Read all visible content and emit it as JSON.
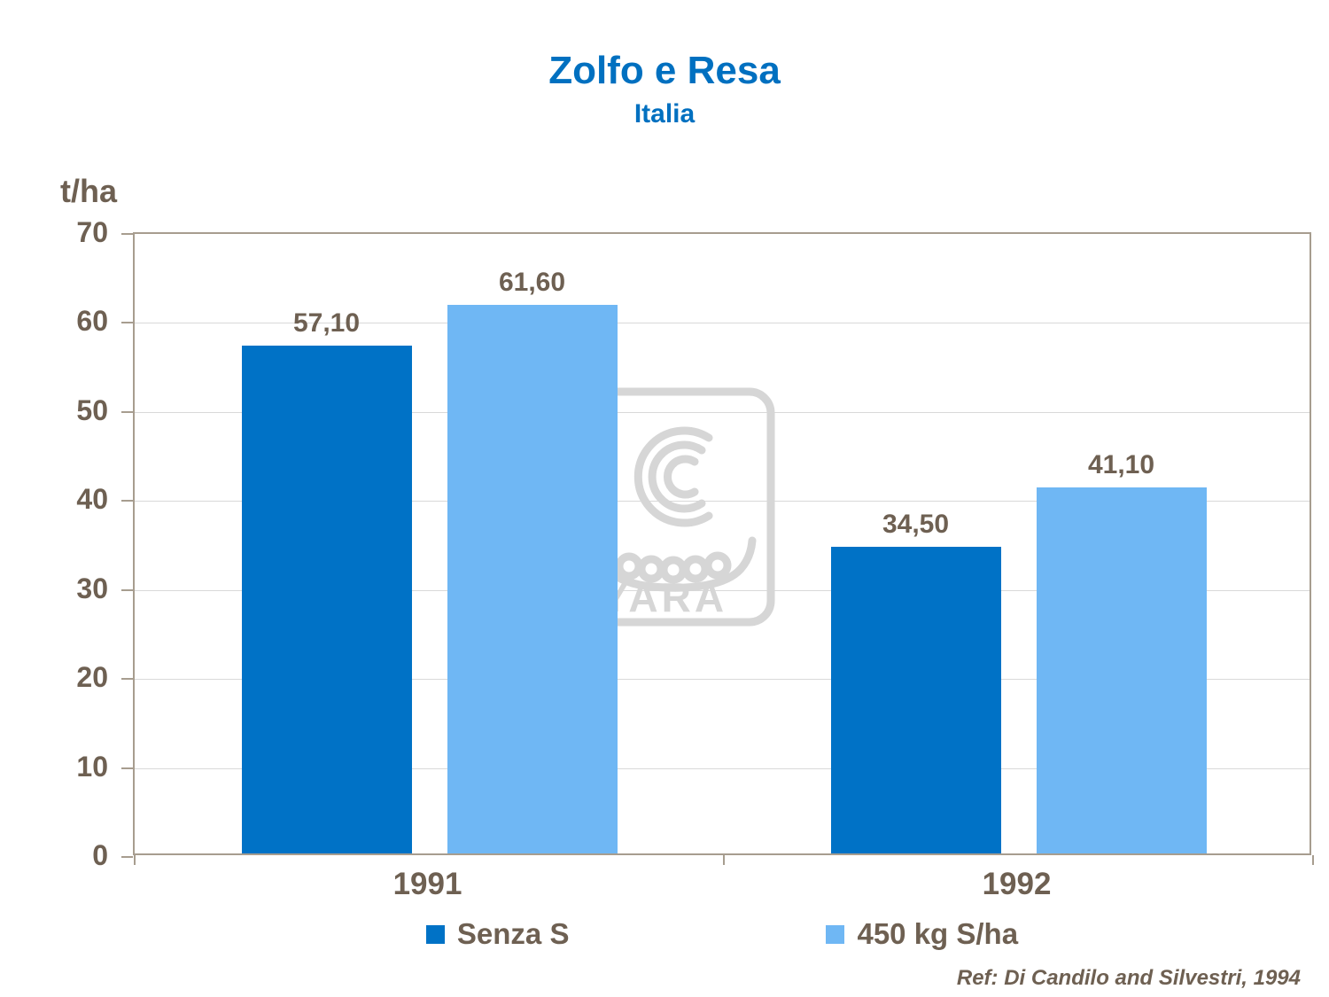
{
  "title": "Zolfo e Resa",
  "subtitle": "Italia",
  "y_axis_label": "t/ha",
  "watermark_text": "YARA",
  "ref_text": "Ref: Di Candilo  and  Silvestri, 1994",
  "colors": {
    "title_blue": "#0070C0",
    "text_brown": "#6E6052",
    "series_dark_blue": "#0072C6",
    "series_light_blue": "#6FB7F4",
    "plot_border": "#A79D8F",
    "gridline": "#D9D9D9",
    "watermark": "#D6D6D6"
  },
  "chart_data": {
    "type": "bar",
    "categories": [
      "1991",
      "1992"
    ],
    "series": [
      {
        "name": "Senza S",
        "color": "#0072C6",
        "values": [
          57.1,
          34.5
        ],
        "labels": [
          "57,10",
          "34,50"
        ]
      },
      {
        "name": "450 kg S/ha",
        "color": "#6FB7F4",
        "values": [
          61.6,
          41.1
        ],
        "labels": [
          "61,60",
          "41,10"
        ]
      }
    ],
    "title": "Zolfo e Resa",
    "subtitle": "Italia",
    "xlabel": "",
    "ylabel": "t/ha",
    "ylim": [
      0,
      70
    ],
    "ytick_step": 10,
    "grid": true,
    "legend_position": "bottom"
  }
}
